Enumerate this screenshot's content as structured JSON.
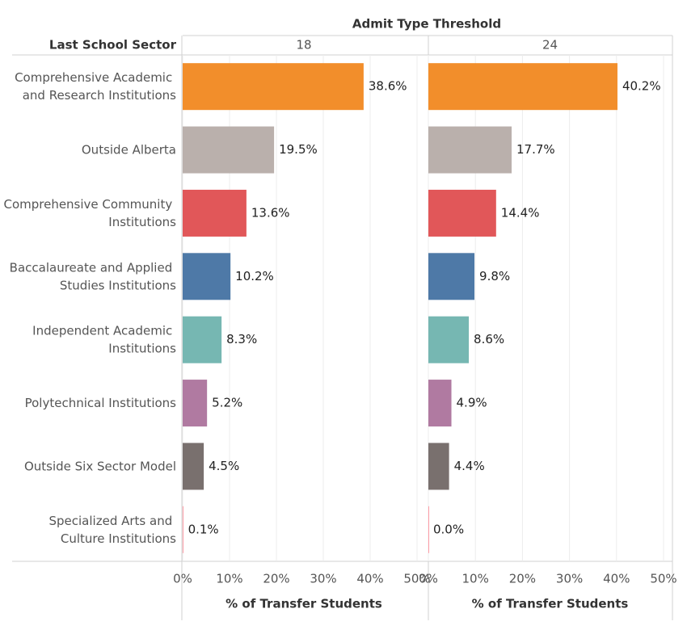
{
  "chart_data": {
    "type": "bar",
    "orientation": "horizontal",
    "title": "Admit Type Threshold",
    "category_label": "Last School Sector",
    "xlabel": "% of Transfer Students",
    "categories": [
      "Comprehensive Academic and Research Institutions",
      "Outside Alberta",
      "Comprehensive Community Institutions",
      "Baccalaureate and Applied Studies Institutions",
      "Independent Academic Institutions",
      "Polytechnical Institutions",
      "Outside Six Sector Model",
      "Specialized Arts and Culture Institutions"
    ],
    "colors": [
      "#f28e2b",
      "#bab0ac",
      "#e15759",
      "#4e79a7",
      "#76b7b2",
      "#b07aa1",
      "#79706e",
      "#ff9da7"
    ],
    "series": [
      {
        "name": "18",
        "values": [
          38.6,
          19.5,
          13.6,
          10.2,
          8.3,
          5.2,
          4.5,
          0.1
        ],
        "value_labels": [
          "38.6%",
          "19.5%",
          "13.6%",
          "10.2%",
          "8.3%",
          "5.2%",
          "4.5%",
          "0.1%"
        ]
      },
      {
        "name": "24",
        "values": [
          40.2,
          17.7,
          14.4,
          9.8,
          8.6,
          4.9,
          4.4,
          0.0
        ],
        "value_labels": [
          "40.2%",
          "17.7%",
          "14.4%",
          "9.8%",
          "8.6%",
          "4.9%",
          "4.4%",
          "0.0%"
        ]
      }
    ],
    "xlim": [
      0,
      50
    ],
    "xticks": [
      {
        "value": 0,
        "label": "0%"
      },
      {
        "value": 10,
        "label": "10%"
      },
      {
        "value": 20,
        "label": "20%"
      },
      {
        "value": 30,
        "label": "30%"
      },
      {
        "value": 40,
        "label": "40%"
      },
      {
        "value": 50,
        "label": "50%"
      }
    ],
    "grid": true
  }
}
